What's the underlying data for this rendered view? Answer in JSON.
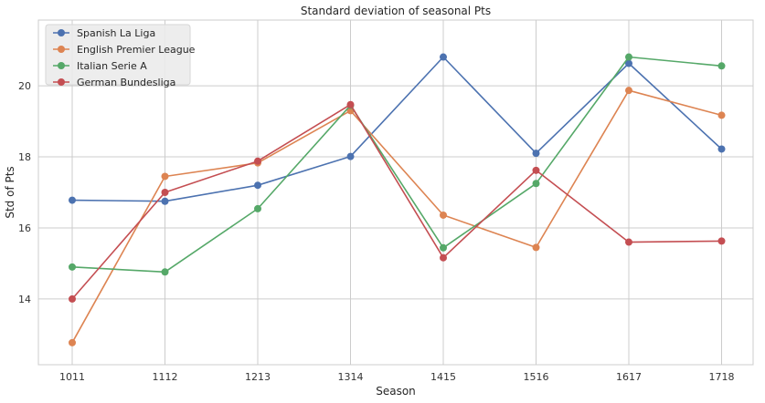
{
  "chart_data": {
    "type": "line",
    "title": "Standard deviation of seasonal Pts",
    "xlabel": "Season",
    "ylabel": "Std of Pts",
    "categories": [
      "1011",
      "1112",
      "1213",
      "1314",
      "1415",
      "1516",
      "1617",
      "1718"
    ],
    "ylim": [
      12.15,
      21.85
    ],
    "yticks": [
      14,
      16,
      18,
      20
    ],
    "grid": true,
    "legend_position": "upper-left",
    "series": [
      {
        "name": "Spanish La Liga",
        "color": "#4c72b0",
        "values": [
          16.78,
          16.75,
          17.2,
          18.01,
          20.81,
          18.1,
          20.63,
          18.22
        ]
      },
      {
        "name": "English Premier League",
        "color": "#dd8452",
        "values": [
          12.77,
          17.45,
          17.83,
          19.3,
          16.36,
          15.45,
          19.87,
          19.17
        ]
      },
      {
        "name": "Italian Serie A",
        "color": "#55a868",
        "values": [
          14.9,
          14.76,
          16.54,
          19.45,
          15.44,
          17.25,
          20.81,
          20.56
        ]
      },
      {
        "name": "German Bundesliga",
        "color": "#c44e52",
        "values": [
          14.0,
          17.0,
          17.88,
          19.47,
          15.16,
          17.62,
          15.6,
          15.63
        ]
      }
    ]
  }
}
